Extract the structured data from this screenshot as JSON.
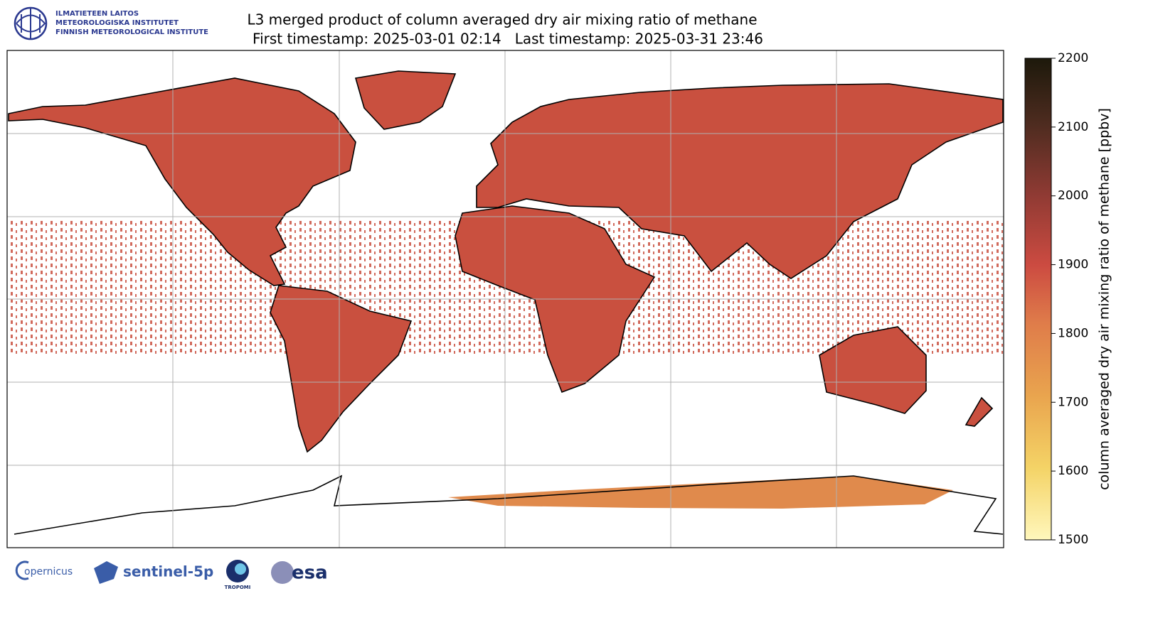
{
  "header": {
    "logo_lines": [
      "ILMATIETEEN LAITOS",
      "METEOROLOGISKA INSTITUTET",
      "FINNISH METEOROLOGICAL INSTITUTE"
    ],
    "title": "L3 merged product of column averaged dry air mixing ratio of methane",
    "subtitle": "First timestamp: 2025-03-01 02:14   Last timestamp: 2025-03-31 23:46"
  },
  "colorbar": {
    "label": "column averaged dry air mixing ratio of methane [ppbv]",
    "lim": [
      1500,
      2200
    ],
    "ticks": [
      1500,
      1600,
      1700,
      1800,
      1900,
      2000,
      2100,
      2200
    ]
  },
  "footer": {
    "logos": [
      "opernicus",
      "sentinel-5p",
      "TROPOMI",
      "esa"
    ]
  }
}
